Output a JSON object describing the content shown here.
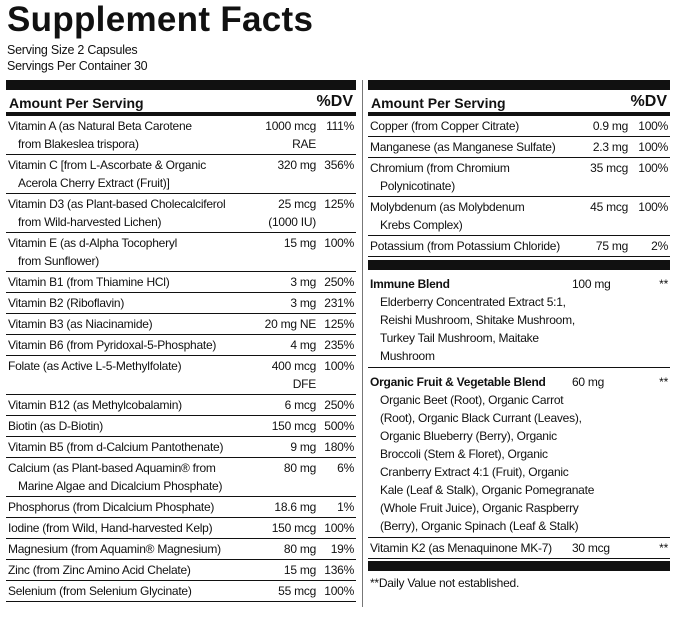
{
  "header": {
    "title": "Supplement Facts",
    "serving_size": "Serving Size 2 Capsules",
    "servings_per_container": "Servings Per Container 30"
  },
  "left": {
    "col_amount": "Amount Per Serving",
    "col_dv": "%DV",
    "rows": [
      {
        "name": [
          "Vitamin A (as Natural Beta Carotene",
          "from Blakeslea trispora)"
        ],
        "amount": [
          "1000 mcg",
          "RAE"
        ],
        "dv": "111%"
      },
      {
        "name": [
          "Vitamin C [from L-Ascorbate & Organic",
          "Acerola Cherry Extract (Fruit)]"
        ],
        "amount": [
          "320 mg"
        ],
        "dv": "356%"
      },
      {
        "name": [
          "Vitamin D3 (as Plant-based Cholecalciferol",
          "from Wild-harvested Lichen)"
        ],
        "amount": [
          "25 mcg",
          "(1000 IU)"
        ],
        "dv": "125%"
      },
      {
        "name": [
          "Vitamin E (as d-Alpha Tocopheryl",
          "from Sunflower)"
        ],
        "amount": [
          "15 mg"
        ],
        "dv": "100%"
      },
      {
        "name": [
          "Vitamin B1 (from Thiamine HCl)"
        ],
        "amount": [
          "3 mg"
        ],
        "dv": "250%"
      },
      {
        "name": [
          "Vitamin B2 (Riboflavin)"
        ],
        "amount": [
          "3 mg"
        ],
        "dv": "231%"
      },
      {
        "name": [
          "Vitamin B3 (as Niacinamide)"
        ],
        "amount": [
          "20 mg NE"
        ],
        "dv": "125%"
      },
      {
        "name": [
          "Vitamin B6 (from Pyridoxal-5-Phosphate)"
        ],
        "amount": [
          "4 mg"
        ],
        "dv": "235%"
      },
      {
        "name": [
          "Folate (as Active L-5-Methylfolate)"
        ],
        "amount": [
          "400 mcg",
          "DFE"
        ],
        "dv": "100%"
      },
      {
        "name": [
          "Vitamin B12 (as Methylcobalamin)"
        ],
        "amount": [
          "6 mcg"
        ],
        "dv": "250%"
      },
      {
        "name": [
          "Biotin (as D-Biotin)"
        ],
        "amount": [
          "150 mcg"
        ],
        "dv": "500%"
      },
      {
        "name": [
          "Vitamin B5 (from d-Calcium Pantothenate)"
        ],
        "amount": [
          "9 mg"
        ],
        "dv": "180%"
      },
      {
        "name": [
          "Calcium (as Plant-based Aquamin® from",
          "Marine Algae and Dicalcium Phosphate)"
        ],
        "amount": [
          "80 mg"
        ],
        "dv": "6%"
      },
      {
        "name": [
          "Phosphorus (from Dicalcium Phosphate)"
        ],
        "amount": [
          "18.6 mg"
        ],
        "dv": "1%"
      },
      {
        "name": [
          "Iodine (from Wild, Hand-harvested Kelp)"
        ],
        "amount": [
          "150 mcg"
        ],
        "dv": "100%"
      },
      {
        "name": [
          "Magnesium (from Aquamin® Magnesium)"
        ],
        "amount": [
          "80 mg"
        ],
        "dv": "19%"
      },
      {
        "name": [
          "Zinc (from Zinc Amino Acid Chelate)"
        ],
        "amount": [
          "15 mg"
        ],
        "dv": "136%"
      },
      {
        "name": [
          "Selenium (from Selenium Glycinate)"
        ],
        "amount": [
          "55 mcg"
        ],
        "dv": "100%"
      }
    ]
  },
  "right": {
    "col_amount": "Amount Per Serving",
    "col_dv": "%DV",
    "rows": [
      {
        "name": [
          "Copper (from Copper Citrate)"
        ],
        "amount": [
          "0.9 mg"
        ],
        "dv": "100%"
      },
      {
        "name": [
          "Manganese (as Manganese Sulfate)"
        ],
        "amount": [
          "2.3 mg"
        ],
        "dv": "100%"
      },
      {
        "name": [
          "Chromium (from Chromium",
          "Polynicotinate)"
        ],
        "amount": [
          "35 mcg"
        ],
        "dv": "100%"
      },
      {
        "name": [
          "Molybdenum (as Molybdenum",
          "Krebs Complex)"
        ],
        "amount": [
          "45 mcg"
        ],
        "dv": "100%"
      },
      {
        "name": [
          "Potassium (from Potassium Chloride)"
        ],
        "amount": [
          "75 mg"
        ],
        "dv": "2%"
      }
    ],
    "blends": [
      {
        "name": "Immune Blend",
        "amount": "100 mg",
        "dv": "**",
        "ingredients": [
          "Elderberry Concentrated Extract 5:1,",
          "Reishi Mushroom, Shitake Mushroom,",
          "Turkey Tail Mushroom, Maitake",
          "Mushroom"
        ]
      },
      {
        "name": "Organic Fruit & Vegetable Blend",
        "amount": "60 mg",
        "dv": "**",
        "ingredients": [
          "Organic Beet (Root), Organic Carrot",
          "(Root), Organic Black Currant (Leaves),",
          "Organic Blueberry (Berry), Organic",
          "Broccoli (Stem & Floret), Organic",
          "Cranberry Extract 4:1 (Fruit), Organic",
          "Kale (Leaf & Stalk), Organic Pomegranate",
          "(Whole Fruit Juice), Organic Raspberry",
          "(Berry), Organic Spinach (Leaf & Stalk)"
        ]
      }
    ],
    "last_row": {
      "name": [
        "Vitamin K2 (as Menaquinone MK-7)"
      ],
      "amount": [
        "30 mcg"
      ],
      "dv": "**"
    },
    "footnote": "**Daily Value not established."
  }
}
